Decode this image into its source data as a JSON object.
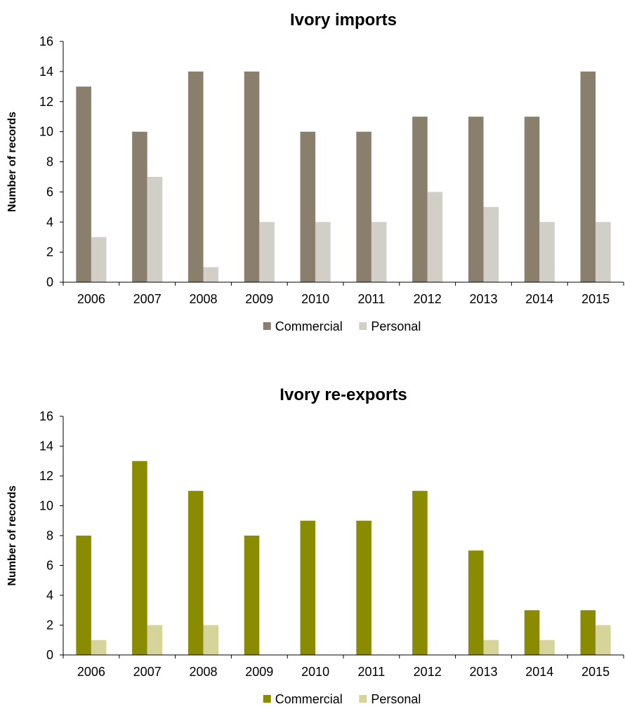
{
  "chart_data": [
    {
      "type": "bar",
      "title": "Ivory imports",
      "xlabel": "",
      "ylabel": "Number of records",
      "ylim": [
        0,
        16
      ],
      "yticks": [
        0,
        2,
        4,
        6,
        8,
        10,
        12,
        14,
        16
      ],
      "grid": false,
      "legend_position": "bottom",
      "categories": [
        "2006",
        "2007",
        "2008",
        "2009",
        "2010",
        "2011",
        "2012",
        "2013",
        "2014",
        "2015"
      ],
      "series": [
        {
          "name": "Commercial",
          "color": "#8a7f6c",
          "values": [
            13,
            10,
            14,
            14,
            10,
            10,
            11,
            11,
            11,
            14
          ]
        },
        {
          "name": "Personal",
          "color": "#d2cfc9",
          "values": [
            3,
            7,
            1,
            4,
            4,
            4,
            6,
            5,
            4,
            4
          ]
        }
      ]
    },
    {
      "type": "bar",
      "title": "Ivory re-exports",
      "xlabel": "",
      "ylabel": "Number of records",
      "ylim": [
        0,
        16
      ],
      "yticks": [
        0,
        2,
        4,
        6,
        8,
        10,
        12,
        14,
        16
      ],
      "grid": false,
      "legend_position": "bottom",
      "categories": [
        "2006",
        "2007",
        "2008",
        "2009",
        "2010",
        "2011",
        "2012",
        "2013",
        "2014",
        "2015"
      ],
      "series": [
        {
          "name": "Commercial",
          "color": "#8b8b00",
          "values": [
            8,
            13,
            11,
            8,
            9,
            9,
            11,
            7,
            3,
            3
          ]
        },
        {
          "name": "Personal",
          "color": "#d6d49a",
          "values": [
            1,
            2,
            2,
            0,
            0,
            0,
            0,
            1,
            1,
            2
          ]
        }
      ]
    }
  ]
}
